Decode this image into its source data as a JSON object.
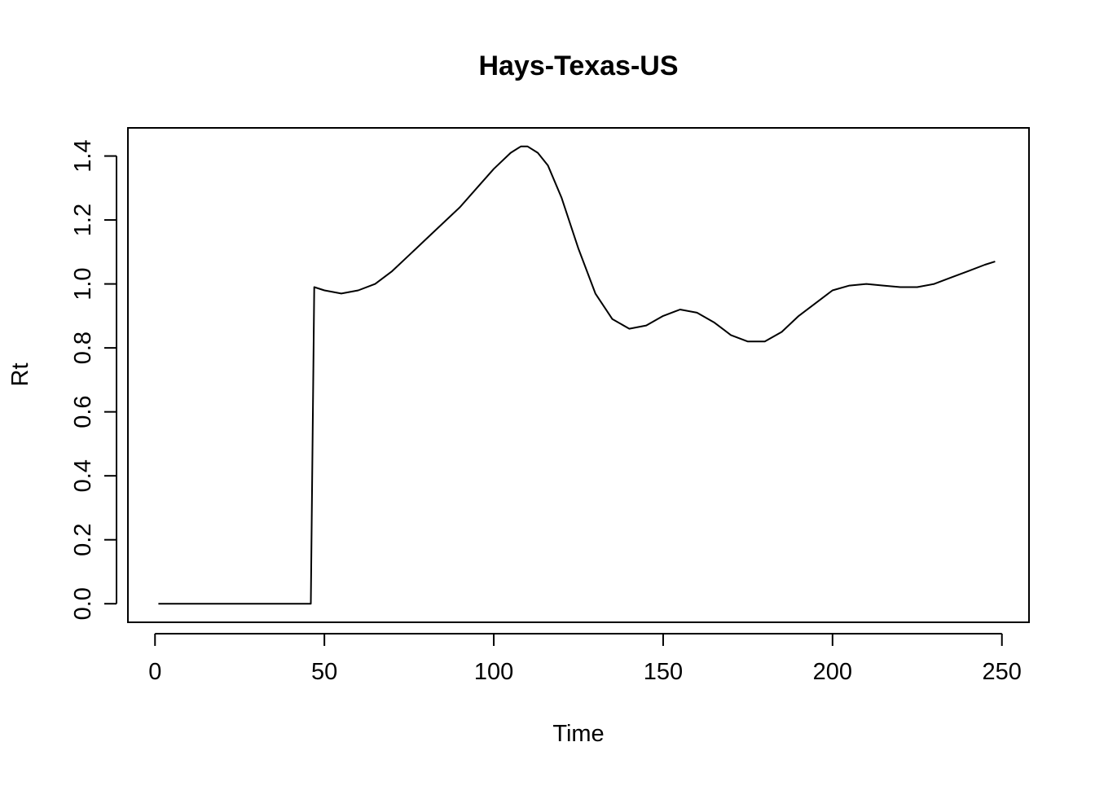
{
  "chart_data": {
    "type": "line",
    "title": "Hays-Texas-US",
    "xlabel": "Time",
    "ylabel": "Rt",
    "xlim": [
      -8,
      258
    ],
    "ylim": [
      -0.058,
      1.488
    ],
    "xticks": [
      0,
      50,
      100,
      150,
      200,
      250
    ],
    "yticks": [
      0.0,
      0.2,
      0.4,
      0.6,
      0.8,
      1.0,
      1.2,
      1.4
    ],
    "xtick_labels": [
      "0",
      "50",
      "100",
      "150",
      "200",
      "250"
    ],
    "ytick_labels": [
      "0.0",
      "0.2",
      "0.4",
      "0.6",
      "0.8",
      "1.0",
      "1.2",
      "1.4"
    ],
    "grid": false,
    "line_color": "#000000",
    "series": [
      {
        "x": [
          1,
          10,
          20,
          30,
          40,
          46,
          47,
          50,
          55,
          60,
          65,
          70,
          75,
          80,
          85,
          90,
          95,
          100,
          105,
          108,
          110,
          113,
          116,
          120,
          125,
          130,
          135,
          140,
          145,
          150,
          155,
          160,
          165,
          170,
          175,
          180,
          185,
          190,
          195,
          200,
          205,
          210,
          215,
          220,
          225,
          230,
          235,
          240,
          245,
          248
        ],
        "y": [
          0,
          0,
          0,
          0,
          0,
          0,
          0.99,
          0.98,
          0.97,
          0.98,
          1.0,
          1.04,
          1.09,
          1.14,
          1.19,
          1.24,
          1.3,
          1.36,
          1.41,
          1.43,
          1.43,
          1.41,
          1.37,
          1.27,
          1.11,
          0.97,
          0.89,
          0.86,
          0.87,
          0.9,
          0.92,
          0.91,
          0.88,
          0.84,
          0.82,
          0.82,
          0.85,
          0.9,
          0.94,
          0.98,
          0.995,
          1.0,
          0.995,
          0.99,
          0.99,
          1.0,
          1.02,
          1.04,
          1.06,
          1.07
        ]
      }
    ]
  }
}
